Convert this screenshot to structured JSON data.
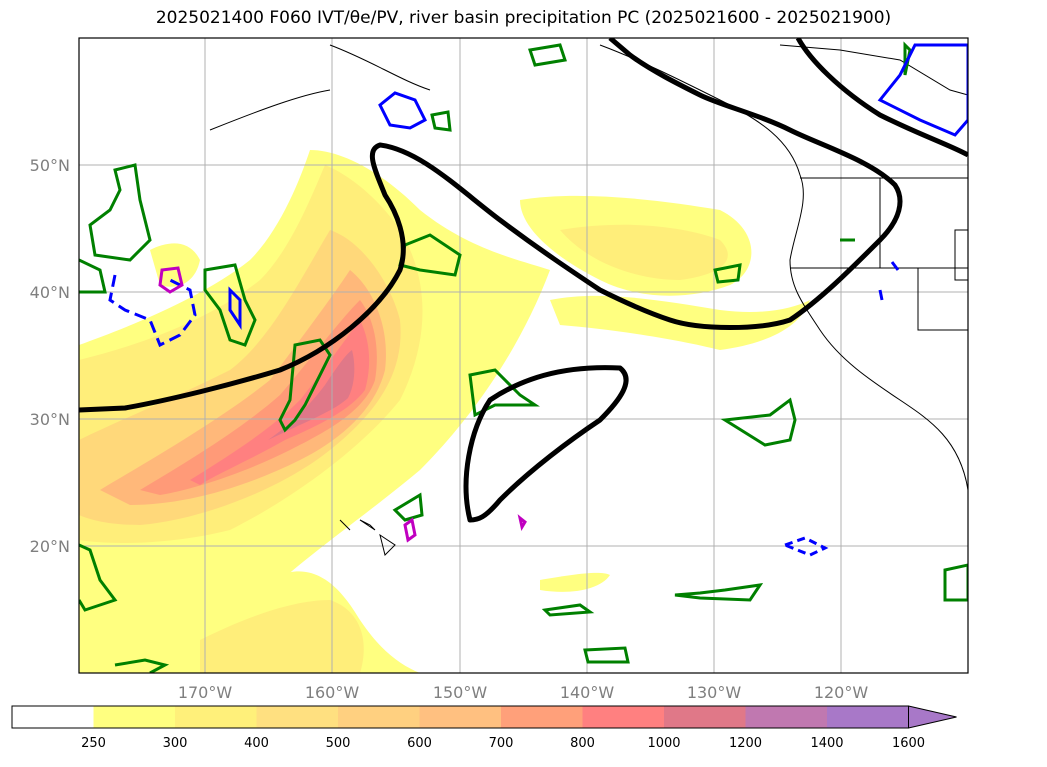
{
  "title": "2025021400 F060 IVT/θe/PV, river basin precipitation PC (2025021600 - 2025021900)",
  "map": {
    "lat_labels": [
      "50°N",
      "40°N",
      "30°N",
      "20°N"
    ],
    "lon_labels": [
      "170°W",
      "160°W",
      "150°W",
      "140°W",
      "130°W",
      "120°W"
    ],
    "extent": {
      "lon_min": -180,
      "lon_max": -110,
      "lat_min": 10,
      "lat_max": 60
    },
    "gridlines": true
  },
  "colorbar": {
    "levels": [
      "250",
      "300",
      "400",
      "500",
      "600",
      "700",
      "800",
      "1000",
      "1200",
      "1400",
      "1600"
    ],
    "colors": [
      "#ffffff",
      "#ffff80",
      "#fff07a",
      "#ffe080",
      "#ffd080",
      "#ffc080",
      "#ffa07a",
      "#ff8080",
      "#e07888",
      "#c078b0",
      "#a878c8"
    ],
    "extend": "max"
  },
  "contour_colors": {
    "ivt_fill": "#ff8c6a",
    "pv": "#000000",
    "theta_e": "#008000",
    "precip_low": "#0000ff",
    "precip_high": "#c000c0"
  }
}
